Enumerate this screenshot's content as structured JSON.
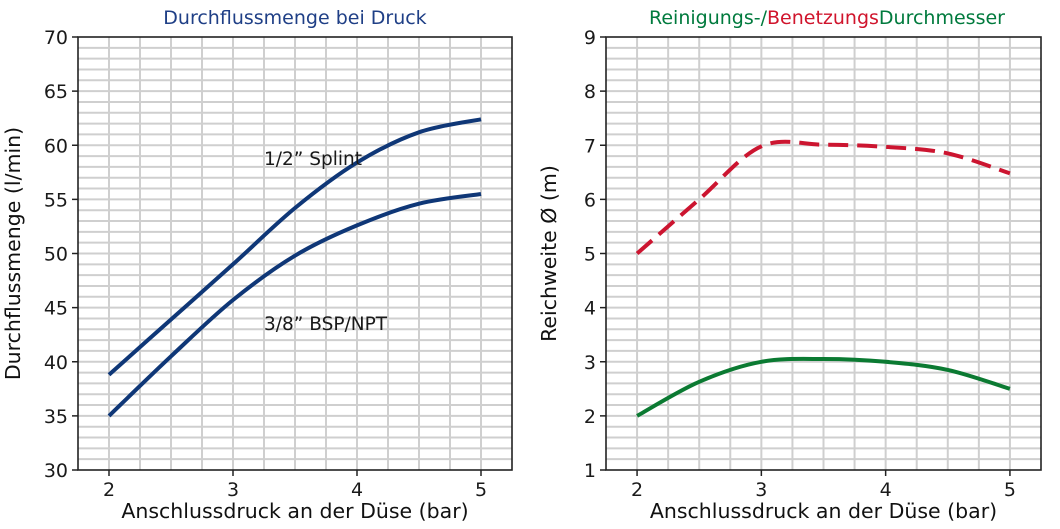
{
  "chart_data": [
    {
      "type": "line",
      "title": "Durchflussmenge bei Druck",
      "xlabel": "Anschlussdruck an der Düse (bar)",
      "ylabel": "Durchflussmenge (l/min)",
      "xlim": [
        1.75,
        5.25
      ],
      "ylim": [
        30,
        70
      ],
      "xticks": [
        2,
        3,
        4,
        5
      ],
      "yticks": [
        30,
        35,
        40,
        45,
        50,
        55,
        60,
        65,
        70
      ],
      "grid": true,
      "colors": {
        "title": "#1f3f86",
        "line": "#0f3777"
      },
      "series": [
        {
          "name": "1/2” Splint",
          "x": [
            2,
            2.5,
            3,
            3.5,
            4,
            4.5,
            5
          ],
          "y": [
            38.8,
            43.9,
            49.0,
            54.2,
            58.4,
            61.2,
            62.4
          ]
        },
        {
          "name": "3/8” BSP/NPT",
          "x": [
            2,
            2.5,
            3,
            3.5,
            4,
            4.5,
            5
          ],
          "y": [
            35.0,
            40.5,
            45.7,
            49.8,
            52.6,
            54.6,
            55.5
          ]
        }
      ]
    },
    {
      "type": "line",
      "title_parts": [
        {
          "text": "Reinigungs-/",
          "color": "#007a3d"
        },
        {
          "text": "Benetzungs",
          "color": "#d0142c"
        },
        {
          "text": "Durchmesser",
          "color": "#007a3d"
        }
      ],
      "xlabel": "Anschlussdruck an der Düse (bar)",
      "ylabel": "Reichweite Ø (m)",
      "xlim": [
        1.75,
        5.25
      ],
      "ylim": [
        1,
        9
      ],
      "xticks": [
        2,
        3,
        4,
        5
      ],
      "yticks": [
        1,
        2,
        3,
        4,
        5,
        6,
        7,
        8,
        9
      ],
      "grid": true,
      "series": [
        {
          "x": [
            2,
            2.5,
            3,
            3.5,
            4,
            4.5,
            5
          ],
          "y": [
            5.0,
            6.0,
            6.98,
            7.01,
            6.97,
            6.85,
            6.48
          ],
          "color": "#cc1530",
          "style": "dashed"
        },
        {
          "x": [
            2,
            2.5,
            3,
            3.5,
            4,
            4.5,
            5
          ],
          "y": [
            2.0,
            2.63,
            3.0,
            3.05,
            3.0,
            2.85,
            2.5
          ],
          "color": "#0b7a32",
          "style": "solid"
        }
      ]
    }
  ]
}
